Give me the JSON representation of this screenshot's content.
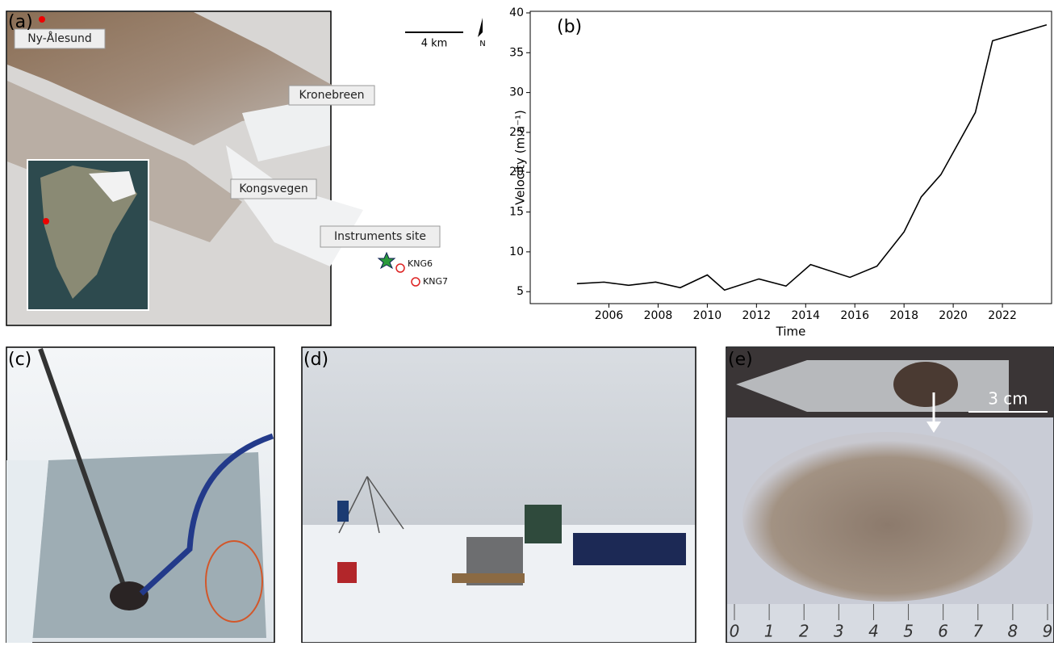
{
  "panels": {
    "a": "(a)",
    "b": "(b)",
    "c": "(c)",
    "d": "(d)",
    "e": "(e)"
  },
  "map": {
    "town": "Ny-Ålesund",
    "glacier_1": "Kronebreen",
    "glacier_2": "Kongsvegen",
    "site": "Instruments site",
    "station_1": "KNG6",
    "station_2": "KNG7",
    "scale": "4 km",
    "north": "N"
  },
  "chart_data": {
    "type": "line",
    "xlabel": "Time",
    "ylabel": "Velocity (m.a⁻¹)",
    "x": [
      2004.7,
      2005.8,
      2006.8,
      2007.9,
      2008.9,
      2010.0,
      2010.7,
      2012.1,
      2013.2,
      2014.2,
      2015.8,
      2016.9,
      2018.0,
      2018.7,
      2019.5,
      2020.9,
      2021.6,
      2023.8
    ],
    "values": [
      6.0,
      6.2,
      5.8,
      6.2,
      5.5,
      7.1,
      5.2,
      6.6,
      5.7,
      8.4,
      6.8,
      8.2,
      12.5,
      16.9,
      19.7,
      27.5,
      36.5,
      38.5
    ],
    "color": "#000000",
    "xlim": [
      2002.8,
      2024.0
    ],
    "xticks": [
      2006,
      2008,
      2010,
      2012,
      2014,
      2016,
      2018,
      2020,
      2022
    ],
    "ylim": [
      3.5,
      40.2
    ],
    "yticks": [
      5,
      10,
      15,
      20,
      25,
      30,
      35,
      40
    ],
    "grid": false
  },
  "photo_e": {
    "scale": "3 cm",
    "ruler": [
      0,
      1,
      2,
      3,
      4,
      5,
      6,
      7,
      8,
      9
    ]
  }
}
